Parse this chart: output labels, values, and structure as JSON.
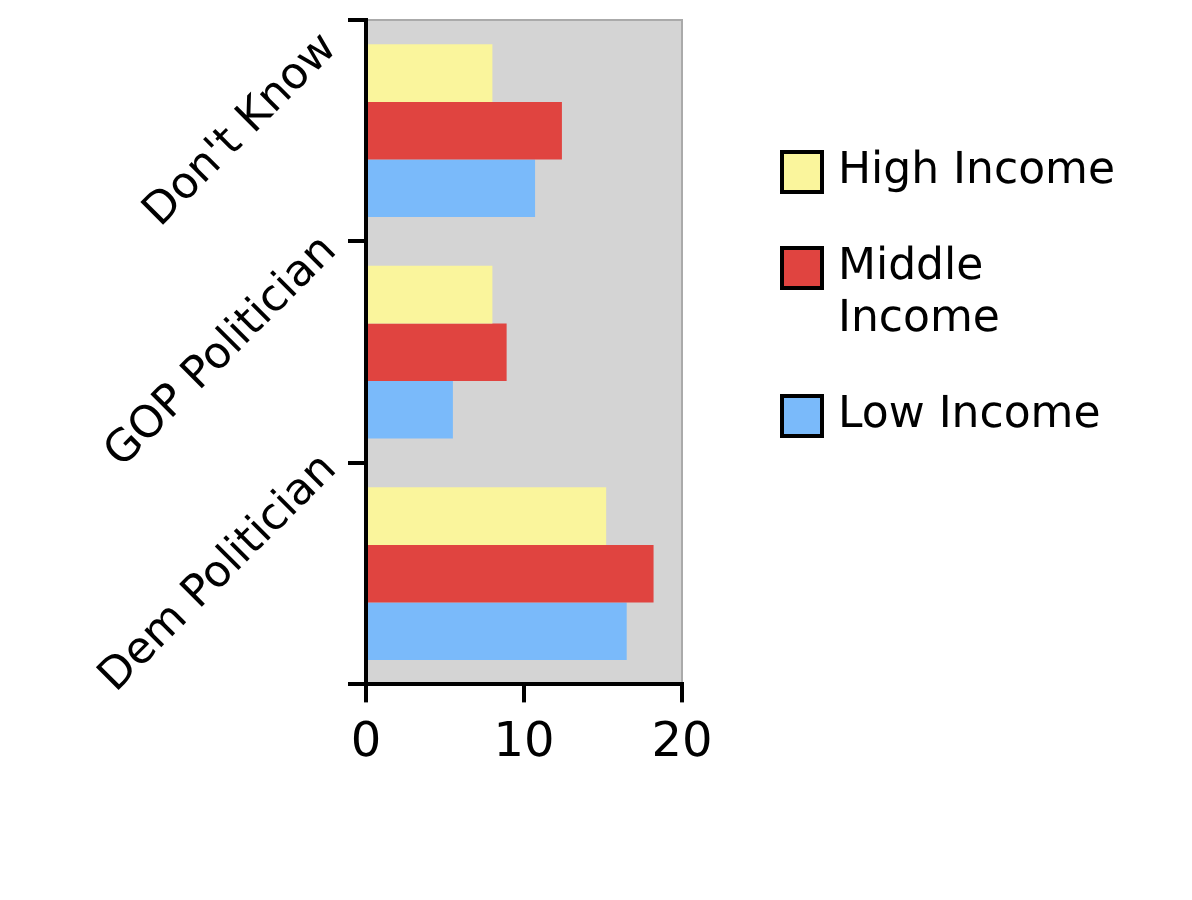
{
  "chart_data": {
    "type": "bar",
    "orientation": "horizontal",
    "categories": [
      "Don't Know",
      "GOP Politician",
      "Dem Politician"
    ],
    "series": [
      {
        "name": "High Income",
        "color": "#faf59c",
        "values": [
          8.0,
          8.0,
          15.2
        ]
      },
      {
        "name": "Middle Income",
        "color": "#e04440",
        "values": [
          12.4,
          8.9,
          18.2
        ]
      },
      {
        "name": "Low Income",
        "color": "#7abafa",
        "values": [
          10.7,
          5.5,
          16.5
        ]
      }
    ],
    "xlim": [
      0,
      20
    ],
    "xticks": [
      0,
      10,
      20
    ],
    "grid": false,
    "legend": "right"
  }
}
